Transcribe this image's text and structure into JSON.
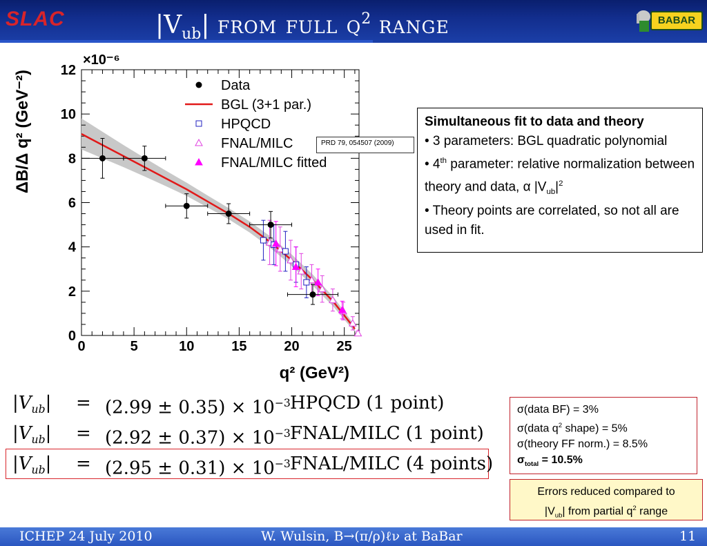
{
  "header": {
    "logo_left": "SLAC",
    "title_bar": "|V",
    "title_sub": "ub",
    "title_bar2": "|",
    "title_from_full": "from full q",
    "title_sup": "2",
    "title_range": "range",
    "logo_right": "BABAR"
  },
  "chart_data": {
    "type": "scatter",
    "title": "",
    "xlabel": "q² (GeV²)",
    "ylabel": "ΔB/Δ q² (GeV⁻²)",
    "y_multiplier": "×10⁻⁶",
    "xlim": [
      0,
      26.4
    ],
    "ylim": [
      0,
      12
    ],
    "xticks": [
      "0",
      "5",
      "10",
      "15",
      "20",
      "25"
    ],
    "yticks": [
      "0",
      "2",
      "4",
      "6",
      "8",
      "10",
      "12"
    ],
    "legend_position": "top-right",
    "legend": [
      "Data",
      "BGL (3+1 par.)",
      "HPQCD",
      "FNAL/MILC",
      "FNAL/MILC fitted"
    ],
    "series": [
      {
        "name": "Data",
        "marker": "filled-circle",
        "color": "#000000",
        "points": [
          {
            "x": 2.0,
            "y": 8.0,
            "xerr": 2.0,
            "yerr": 0.9
          },
          {
            "x": 6.0,
            "y": 8.0,
            "xerr": 2.0,
            "yerr": 0.55
          },
          {
            "x": 10.0,
            "y": 5.85,
            "xerr": 2.0,
            "yerr": 0.55
          },
          {
            "x": 14.0,
            "y": 5.5,
            "xerr": 2.0,
            "yerr": 0.45
          },
          {
            "x": 18.0,
            "y": 5.0,
            "xerr": 2.0,
            "yerr": 0.6
          },
          {
            "x": 22.0,
            "y": 1.85,
            "xerr": 2.4,
            "yerr": 0.45
          }
        ]
      },
      {
        "name": "BGL (3+1 par.)",
        "line": true,
        "color": "#e11919",
        "points": [
          {
            "x": 0,
            "y": 9.1
          },
          {
            "x": 2,
            "y": 8.6
          },
          {
            "x": 4,
            "y": 8.1
          },
          {
            "x": 6,
            "y": 7.6
          },
          {
            "x": 8,
            "y": 7.1
          },
          {
            "x": 10,
            "y": 6.6
          },
          {
            "x": 12,
            "y": 6.05
          },
          {
            "x": 14,
            "y": 5.5
          },
          {
            "x": 16,
            "y": 4.9
          },
          {
            "x": 18,
            "y": 4.2
          },
          {
            "x": 20,
            "y": 3.4
          },
          {
            "x": 22,
            "y": 2.5
          },
          {
            "x": 24,
            "y": 1.5
          },
          {
            "x": 26,
            "y": 0.3
          }
        ],
        "band_halfwidth": [
          0.7,
          0.6,
          0.5,
          0.42,
          0.35,
          0.3,
          0.27,
          0.25,
          0.25,
          0.26,
          0.26,
          0.25,
          0.22,
          0.15
        ]
      },
      {
        "name": "HPQCD",
        "marker": "open-square",
        "color": "#2020c0",
        "points": [
          {
            "x": 17.3,
            "y": 4.3,
            "yerr": 0.9
          },
          {
            "x": 18.3,
            "y": 4.1,
            "yerr": 0.9
          },
          {
            "x": 19.4,
            "y": 3.8,
            "yerr": 0.9
          },
          {
            "x": 20.4,
            "y": 3.2,
            "yerr": 0.8
          },
          {
            "x": 21.4,
            "y": 2.4,
            "yerr": 0.7
          }
        ]
      },
      {
        "name": "FNAL/MILC",
        "marker": "open-triangle",
        "color": "#e040e0",
        "points": [
          {
            "x": 17.9,
            "y": 4.2,
            "yerr": 1.0
          },
          {
            "x": 18.9,
            "y": 3.9,
            "yerr": 1.0
          },
          {
            "x": 19.9,
            "y": 3.4,
            "yerr": 0.9
          },
          {
            "x": 20.9,
            "y": 2.9,
            "yerr": 0.8
          },
          {
            "x": 21.9,
            "y": 2.5,
            "yerr": 0.7
          },
          {
            "x": 22.9,
            "y": 2.1,
            "yerr": 0.6
          },
          {
            "x": 23.9,
            "y": 1.6,
            "yerr": 0.5
          },
          {
            "x": 24.9,
            "y": 1.1,
            "yerr": 0.4
          },
          {
            "x": 25.8,
            "y": 0.55,
            "yerr": 0.3
          },
          {
            "x": 26.3,
            "y": 0.1,
            "yerr": 0.1
          }
        ]
      },
      {
        "name": "FNAL/MILC fitted",
        "marker": "filled-triangle",
        "color": "#ff00ff",
        "points": [
          {
            "x": 18.5,
            "y": 4.15,
            "yerr": 1.0
          },
          {
            "x": 20.4,
            "y": 3.1,
            "yerr": 0.9
          },
          {
            "x": 22.5,
            "y": 2.4,
            "yerr": 0.6
          },
          {
            "x": 24.8,
            "y": 1.15,
            "yerr": 0.4
          }
        ]
      }
    ]
  },
  "prd_label": "PRD 79, 054507 (2009)",
  "info": {
    "heading": "Simultaneous fit to data and theory",
    "b1": "• 3 parameters: BGL quadratic polynomial",
    "b2_pre": "• 4",
    "b2_sup": "th",
    "b2_post": " parameter: relative normalization between theory and data, α |V",
    "b2_sub": "ub",
    "b2_end": "|",
    "b2_sup2": "2",
    "b3": "• Theory points are correlated, so not all are used in fit."
  },
  "results": [
    {
      "lhs": "|V",
      "sub": "ub",
      "rhs": "|",
      "eq": "=",
      "val": "(2.99 ± 0.35) × 10",
      "exp": "−3",
      "label": "HPQCD (1 point)"
    },
    {
      "lhs": "|V",
      "sub": "ub",
      "rhs": "|",
      "eq": "=",
      "val": "(2.92 ± 0.37) × 10",
      "exp": "−3",
      "label": "FNAL/MILC (1 point)"
    },
    {
      "lhs": "|V",
      "sub": "ub",
      "rhs": "|",
      "eq": "=",
      "val": "(2.95 ± 0.31) × 10",
      "exp": "−3",
      "label": "FNAL/MILC (4 points)"
    }
  ],
  "errors": {
    "l1": "σ(data BF) = 3%",
    "l2_pre": "σ(data q",
    "l2_sup": "2",
    "l2_post": " shape) = 5%",
    "l3": "σ(theory FF norm.) = 8.5%",
    "l4_sigma": "σ",
    "l4_sub": "total",
    "l4_post": " = 10.5%"
  },
  "note": {
    "l1": "Errors reduced compared to",
    "l2_pre": "|V",
    "l2_sub": "ub",
    "l2_mid": "| from partial q",
    "l2_sup": "2",
    "l2_post": " range"
  },
  "footer": {
    "left": "ICHEP 24 July 2010",
    "center": "W. Wulsin, B→(π/ρ)ℓν at BaBar",
    "page": "11"
  },
  "colors": {
    "header_bg": "#122d8c",
    "footer_bg": "#3a66cc",
    "fit_line": "#e11919",
    "band": "#c8c8c8",
    "accent_red": "#d8242a",
    "note_bg": "#fff8c8"
  }
}
